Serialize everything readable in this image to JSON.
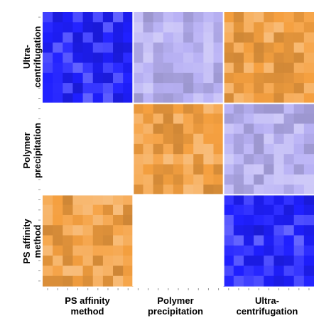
{
  "chart_data": {
    "type": "heatmap",
    "row_groups": [
      "Ultra-centrifugation",
      "Polymer precipitation",
      "PS affinity method"
    ],
    "col_groups": [
      "PS affinity method",
      "Polymer precipitation",
      "Ultra-centrifugation"
    ],
    "row_group_labels": [
      [
        "Ultra-",
        "centrifugation"
      ],
      [
        "Polymer",
        "precipitation"
      ],
      [
        "PS affinity",
        "method"
      ]
    ],
    "col_group_labels": [
      [
        "PS affinity",
        "method"
      ],
      [
        "Polymer",
        "precipitation"
      ],
      [
        "Ultra-",
        "centrifugation"
      ]
    ],
    "samples_per_group": 9,
    "colors": {
      "very_low": "#1f1fff",
      "low": "#b9b2f5",
      "mid": "#ffffff",
      "high": "#f5a040",
      "grid_line": "#ffffff"
    },
    "blocks": [
      {
        "row_group": "Ultra-centrifugation",
        "col_group": "PS affinity method",
        "level": "very_low"
      },
      {
        "row_group": "Ultra-centrifugation",
        "col_group": "Polymer precipitation",
        "level": "low"
      },
      {
        "row_group": "Ultra-centrifugation",
        "col_group": "Ultra-centrifugation",
        "level": "high"
      },
      {
        "row_group": "Polymer precipitation",
        "col_group": "PS affinity method",
        "level": "mid"
      },
      {
        "row_group": "Polymer precipitation",
        "col_group": "Polymer precipitation",
        "level": "high"
      },
      {
        "row_group": "Polymer precipitation",
        "col_group": "Ultra-centrifugation",
        "level": "low"
      },
      {
        "row_group": "PS affinity method",
        "col_group": "PS affinity method",
        "level": "high"
      },
      {
        "row_group": "PS affinity method",
        "col_group": "Polymer precipitation",
        "level": "mid"
      },
      {
        "row_group": "PS affinity method",
        "col_group": "Ultra-centrifugation",
        "level": "very_low"
      }
    ],
    "grid": false,
    "legend": "none"
  }
}
